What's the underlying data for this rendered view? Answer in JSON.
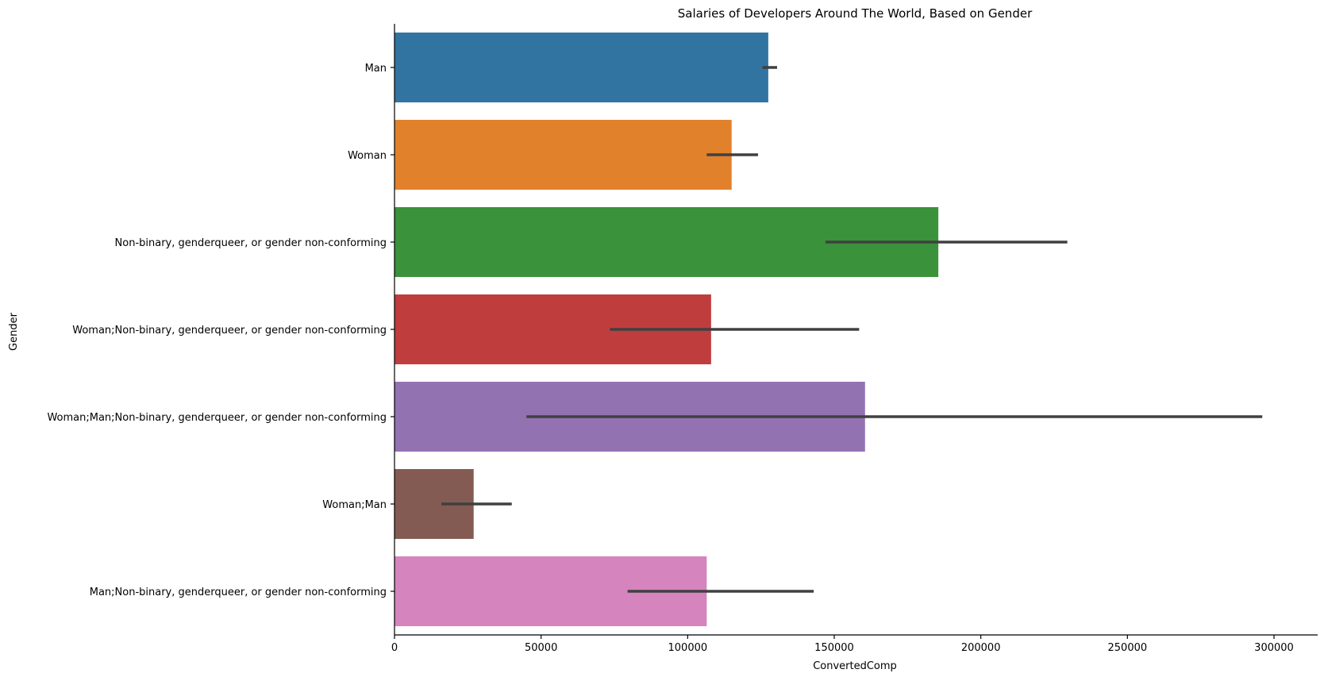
{
  "chart_data": {
    "type": "bar",
    "orientation": "horizontal",
    "title": "Salaries of Developers Around The World, Based on Gender",
    "xlabel": "ConvertedComp",
    "ylabel": "Gender",
    "xlim": [
      0,
      310000
    ],
    "xticks": [
      0,
      50000,
      100000,
      150000,
      200000,
      250000,
      300000
    ],
    "xtick_labels": [
      "0",
      "50000",
      "100000",
      "150000",
      "200000",
      "250000",
      "300000"
    ],
    "grid": false,
    "categories": [
      "Man",
      "Woman",
      "Non-binary, genderqueer, or gender non-conforming",
      "Woman;Non-binary, genderqueer, or gender non-conforming",
      "Woman;Man;Non-binary, genderqueer, or gender non-conforming",
      "Woman;Man",
      "Man;Non-binary, genderqueer, or gender non-conforming"
    ],
    "values": [
      127500,
      115000,
      185500,
      108000,
      160500,
      27000,
      106500
    ],
    "error_low": [
      125500,
      106500,
      147000,
      73500,
      45000,
      16000,
      79500
    ],
    "error_high": [
      130500,
      124000,
      229500,
      158500,
      296000,
      40000,
      143000
    ],
    "colors": [
      "#3274a1",
      "#e1812c",
      "#3a923a",
      "#c03d3e",
      "#9372b2",
      "#845b53",
      "#d684bd"
    ],
    "error_color": "#404040"
  }
}
